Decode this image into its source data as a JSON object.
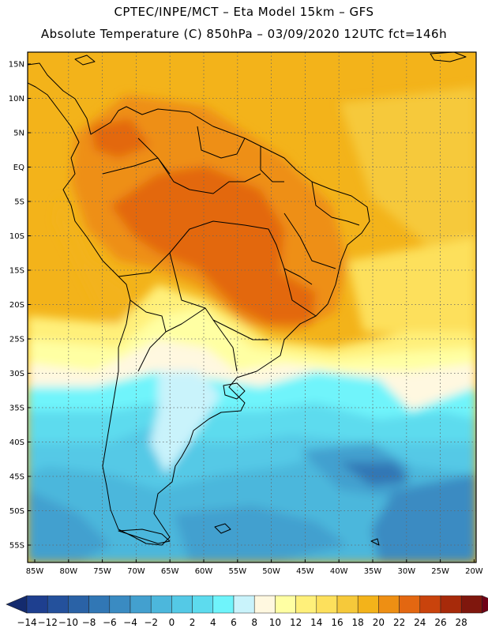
{
  "header": {
    "line1": "CPTEC/INPE/MCT –  Eta Model 15km – GFS",
    "line2": "Absolute Temperature (C) 850hPa – 03/09/2020 12UTC fct=146h"
  },
  "map": {
    "lat_labels": [
      "15N",
      "10N",
      "5N",
      "EQ",
      "5S",
      "10S",
      "15S",
      "20S",
      "25S",
      "30S",
      "35S",
      "40S",
      "45S",
      "50S",
      "55S"
    ],
    "lon_labels": [
      "85W",
      "80W",
      "75W",
      "70W",
      "65W",
      "60W",
      "55W",
      "50W",
      "45W",
      "40W",
      "35W",
      "30W",
      "25W",
      "20W"
    ]
  },
  "colorbar": {
    "labels": [
      "-14",
      "-12",
      "-10",
      "-8",
      "-6",
      "-4",
      "-2",
      "0",
      "2",
      "4",
      "6",
      "8",
      "10",
      "12",
      "14",
      "16",
      "18",
      "20",
      "22",
      "24",
      "26",
      "28"
    ],
    "colors": [
      "#1e3f8f",
      "#24519c",
      "#2a62a6",
      "#3177b5",
      "#3a8bc2",
      "#43a0cf",
      "#4cb7dc",
      "#54c9e6",
      "#5ddbee",
      "#6ff4fb",
      "#c9f3fb",
      "#fff8e0",
      "#ffffa3",
      "#fff07a",
      "#fde05c",
      "#f6c93a",
      "#f3b31a",
      "#ee8f13",
      "#e36711",
      "#c9430c",
      "#a72a0a",
      "#7f170d"
    ],
    "low_color": "#142b6e",
    "high_color": "#700016"
  }
}
